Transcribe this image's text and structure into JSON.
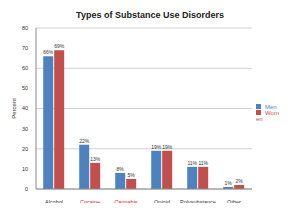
{
  "chart_data": {
    "type": "bar",
    "title": "Types of Substance Use Disorders",
    "ylabel": "Percent",
    "categories": [
      "Alcohol",
      "Cocaine",
      "Cannabis",
      "Opioid",
      "Polysubstance",
      "Other"
    ],
    "series": [
      {
        "name": "Men",
        "color": "#4f81bd",
        "values": [
          66,
          22,
          8,
          19,
          11,
          1
        ],
        "value_labels": [
          "66%",
          "22%",
          "8%",
          "19%",
          "11%",
          "1%"
        ]
      },
      {
        "name": "Women",
        "color": "#c0504d",
        "values": [
          69,
          13,
          5,
          19,
          11,
          2
        ],
        "value_labels": [
          "69%",
          "13%",
          "5%",
          "19%",
          "11%",
          "2%"
        ]
      }
    ],
    "ylim": [
      0,
      80
    ],
    "yticks": [
      0,
      10,
      20,
      30,
      40,
      50,
      60,
      70,
      80
    ],
    "grid": true,
    "legend": "right",
    "data_labels": true
  }
}
